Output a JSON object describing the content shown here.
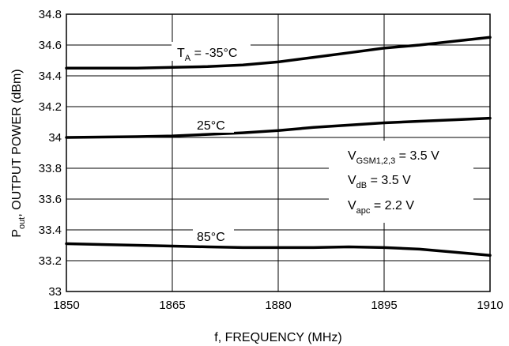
{
  "chart_data": {
    "type": "line",
    "xlabel": "f, FREQUENCY (MHz)",
    "ylabel_main": "P",
    "ylabel_sub": "out",
    "ylabel_rest": ", OUTPUT POWER (dBm)",
    "xlim": [
      1850,
      1910
    ],
    "ylim": [
      33,
      34.8
    ],
    "grid": true,
    "x_ticks": [
      "1850",
      "1865",
      "1880",
      "1895",
      "1910"
    ],
    "y_ticks": [
      "33",
      "33.2",
      "33.4",
      "33.6",
      "33.8",
      "34",
      "34.2",
      "34.4",
      "34.6",
      "34.8"
    ],
    "series": [
      {
        "name": "T_A = -35°C",
        "label_main": "T",
        "label_sub": "A",
        "label_rest": " = -35°C",
        "x": [
          1850,
          1860,
          1865,
          1870,
          1875,
          1880,
          1885,
          1890,
          1895,
          1900,
          1905,
          1910
        ],
        "y": [
          34.45,
          34.45,
          34.455,
          34.46,
          34.47,
          34.49,
          34.52,
          34.55,
          34.58,
          34.6,
          34.625,
          34.65
        ]
      },
      {
        "name": "25°C",
        "label_main": "25°C",
        "x": [
          1850,
          1860,
          1865,
          1870,
          1875,
          1880,
          1885,
          1890,
          1895,
          1900,
          1905,
          1910
        ],
        "y": [
          34.0,
          34.005,
          34.01,
          34.02,
          34.03,
          34.045,
          34.065,
          34.08,
          34.095,
          34.105,
          34.115,
          34.125
        ]
      },
      {
        "name": "85°C",
        "label_main": "85°C",
        "x": [
          1850,
          1860,
          1865,
          1870,
          1875,
          1880,
          1885,
          1890,
          1895,
          1900,
          1905,
          1910
        ],
        "y": [
          33.31,
          33.3,
          33.295,
          33.29,
          33.285,
          33.285,
          33.285,
          33.29,
          33.285,
          33.275,
          33.255,
          33.235
        ]
      }
    ],
    "conditions": [
      {
        "main": "V",
        "sub": "GSM1,2,3",
        "rest": " = 3.5 V"
      },
      {
        "main": "V",
        "sub": "dB",
        "rest": " = 3.5 V"
      },
      {
        "main": "V",
        "sub": "apc",
        "rest": " = 2.2 V"
      }
    ]
  }
}
